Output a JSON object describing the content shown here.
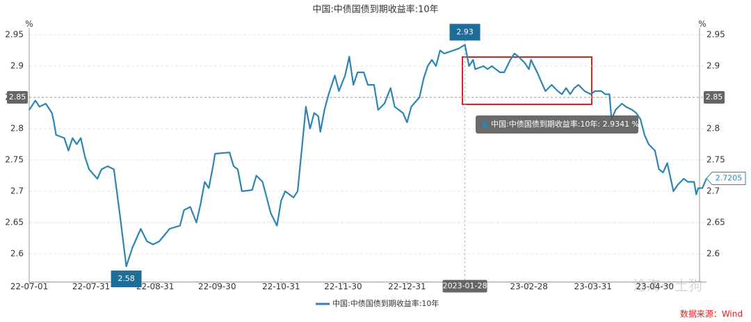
{
  "chart_data": {
    "type": "line",
    "title": "中国:中债国债到期收益率:10年",
    "y_unit": "%",
    "x": [
      "22-07-01",
      "22-07-04",
      "22-07-06",
      "22-07-09",
      "22-07-12",
      "22-07-13",
      "22-07-14",
      "22-07-18",
      "22-07-20",
      "22-07-22",
      "22-07-24",
      "22-07-26",
      "22-07-28",
      "22-07-30",
      "22-08-03",
      "22-08-05",
      "22-08-08",
      "22-08-11",
      "22-08-14",
      "22-08-17",
      "22-08-20",
      "22-08-24",
      "22-08-27",
      "22-08-30",
      "22-09-02",
      "22-09-07",
      "22-09-12",
      "22-09-14",
      "22-09-17",
      "22-09-20",
      "22-09-22",
      "22-09-24",
      "22-09-26",
      "22-09-28",
      "22-09-29",
      "22-10-06",
      "22-10-08",
      "22-10-10",
      "22-10-12",
      "22-10-17",
      "22-10-19",
      "22-10-22",
      "22-10-26",
      "22-10-29",
      "22-10-31",
      "22-11-02",
      "22-11-06",
      "22-11-08",
      "22-11-11",
      "22-11-12",
      "22-11-14",
      "22-11-16",
      "22-11-18",
      "22-11-19",
      "22-11-21",
      "22-11-23",
      "22-11-26",
      "22-11-28",
      "22-12-01",
      "22-12-03",
      "22-12-05",
      "22-12-07",
      "22-12-10",
      "22-12-12",
      "22-12-15",
      "22-12-17",
      "22-12-20",
      "22-12-23",
      "22-12-25",
      "22-12-29",
      "22-12-31",
      "23-01-02",
      "23-01-06",
      "23-01-08",
      "23-01-10",
      "23-01-12",
      "23-01-14",
      "23-01-16",
      "23-01-18",
      "23-01-25",
      "23-01-28",
      "23-01-30",
      "23-02-01",
      "23-02-02",
      "23-02-06",
      "23-02-08",
      "23-02-10",
      "23-02-14",
      "23-02-16",
      "23-02-19",
      "23-02-21",
      "23-02-23",
      "23-02-26",
      "23-02-28",
      "23-03-01",
      "23-03-04",
      "23-03-06",
      "23-03-08",
      "23-03-11",
      "23-03-14",
      "23-03-16",
      "23-03-18",
      "23-03-20",
      "23-03-22",
      "23-03-24",
      "23-03-27",
      "23-03-30",
      "23-04-01",
      "23-04-04",
      "23-04-06",
      "23-04-08",
      "23-04-09",
      "23-04-11",
      "23-04-14",
      "23-04-16",
      "23-04-19",
      "23-04-21",
      "23-04-23",
      "23-04-25",
      "23-04-27",
      "23-04-30",
      "23-05-02",
      "23-05-04",
      "23-05-06",
      "23-05-09",
      "23-05-11",
      "23-05-14",
      "23-05-16",
      "23-05-19",
      "23-05-20",
      "23-05-21",
      "23-05-23",
      "23-05-25"
    ],
    "series": [
      {
        "name": "中国:中债国债到期收益率:10年",
        "color": "#2b85b4",
        "values": [
          2.83,
          2.845,
          2.835,
          2.84,
          2.825,
          2.81,
          2.79,
          2.785,
          2.765,
          2.785,
          2.775,
          2.785,
          2.755,
          2.735,
          2.72,
          2.735,
          2.74,
          2.735,
          2.66,
          2.58,
          2.61,
          2.64,
          2.62,
          2.615,
          2.62,
          2.64,
          2.645,
          2.67,
          2.675,
          2.65,
          2.68,
          2.715,
          2.705,
          2.74,
          2.76,
          2.762,
          2.74,
          2.735,
          2.7,
          2.702,
          2.725,
          2.715,
          2.665,
          2.645,
          2.685,
          2.7,
          2.69,
          2.7,
          2.8,
          2.835,
          2.8,
          2.825,
          2.82,
          2.795,
          2.83,
          2.855,
          2.885,
          2.86,
          2.885,
          2.915,
          2.87,
          2.89,
          2.89,
          2.87,
          2.87,
          2.83,
          2.84,
          2.865,
          2.835,
          2.825,
          2.81,
          2.835,
          2.85,
          2.88,
          2.9,
          2.91,
          2.9,
          2.925,
          2.92,
          2.928,
          2.9341,
          2.9,
          2.91,
          2.895,
          2.9,
          2.895,
          2.9,
          2.89,
          2.89,
          2.91,
          2.92,
          2.915,
          2.905,
          2.895,
          2.91,
          2.89,
          2.875,
          2.86,
          2.87,
          2.86,
          2.855,
          2.865,
          2.855,
          2.865,
          2.87,
          2.86,
          2.855,
          2.86,
          2.86,
          2.855,
          2.855,
          2.815,
          2.83,
          2.84,
          2.835,
          2.83,
          2.825,
          2.815,
          2.79,
          2.775,
          2.765,
          2.735,
          2.73,
          2.745,
          2.7,
          2.71,
          2.72,
          2.715,
          2.715,
          2.695,
          2.705,
          2.705,
          2.7205
        ],
        "value_labels": [
          null,
          null,
          null,
          null,
          null,
          null,
          null,
          null,
          null,
          null,
          null,
          null,
          null,
          null,
          null,
          null,
          null,
          null,
          null,
          "2.58",
          null,
          null,
          null,
          null,
          null,
          null,
          null,
          null,
          null,
          null,
          null,
          null,
          null,
          null,
          null,
          null,
          null,
          null,
          null,
          null,
          null,
          null,
          null,
          null,
          null,
          null,
          null,
          null,
          null,
          null,
          null,
          null,
          null,
          null,
          null,
          null,
          null,
          null,
          null,
          null,
          null,
          null,
          null,
          null,
          null,
          null,
          null,
          null,
          null,
          null,
          null,
          null,
          null,
          null,
          null,
          null,
          null,
          null,
          null,
          null,
          "2.93",
          null,
          null,
          null,
          null,
          null,
          null,
          null,
          null,
          null,
          null,
          null,
          null,
          null,
          null,
          null,
          null,
          null,
          null,
          null,
          null,
          null,
          null,
          null,
          null,
          null,
          null,
          null,
          null,
          null,
          null,
          null,
          null,
          null,
          null,
          null,
          null,
          null,
          null,
          null,
          null,
          null,
          null,
          null,
          null,
          null,
          null,
          null,
          null,
          null,
          null,
          null,
          "2.7205"
        ]
      }
    ],
    "xlim": [
      "22-07-01",
      "23-05-25"
    ],
    "xticks": [
      "22-07-01",
      "22-07-31",
      "22-08-31",
      "22-09-30",
      "22-10-31",
      "22-11-30",
      "22-12-31",
      "23-02-28",
      "23-03-31",
      "23-04-30"
    ],
    "ylim": [
      2.555,
      2.95
    ],
    "yticks": [
      2.6,
      2.65,
      2.7,
      2.75,
      2.8,
      2.85,
      2.9,
      2.95
    ],
    "grid": true,
    "crosshair": {
      "x": "2023-01-28",
      "y": 2.85
    },
    "tooltip": "中国:中债国债到期收益率:10年: 2.9341  %",
    "watermark": "沧海一土狗",
    "source": "数据来源：Wind"
  }
}
